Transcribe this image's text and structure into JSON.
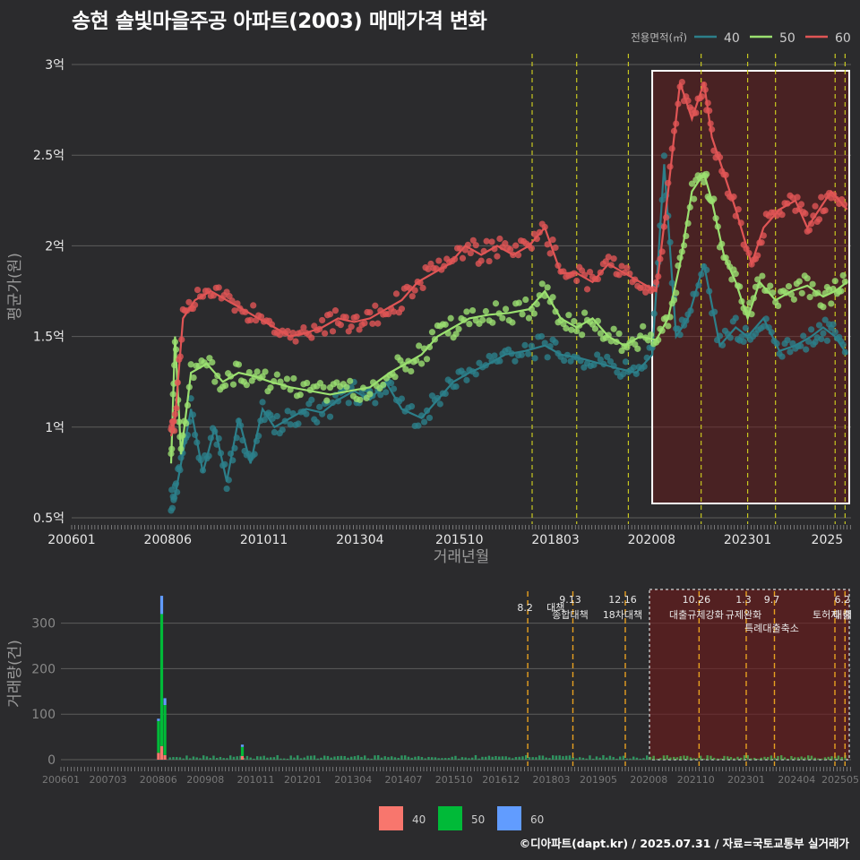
{
  "title": "송현 솔빛마을주공 아파트(2003) 매매가격 변화",
  "credit": "©디아파트(dapt.kr) / 2025.07.31 / 자료=국토교통부 실거래가",
  "legend_top": {
    "title": "전용면적(㎡)",
    "entries": [
      {
        "label": "40",
        "color": "#2c7f8a"
      },
      {
        "label": "50",
        "color": "#9be070"
      },
      {
        "label": "60",
        "color": "#e05555"
      }
    ]
  },
  "legend_bottom": {
    "entries": [
      {
        "label": "40",
        "color": "#f8766d"
      },
      {
        "label": "50",
        "color": "#00ba38"
      },
      {
        "label": "60",
        "color": "#619cff"
      }
    ]
  },
  "chart_data": [
    {
      "type": "line",
      "title": "송현 솔빛마을주공 아파트(2003) 매매가격 변화",
      "xlabel": "거래년월",
      "ylabel": "평균가(원)",
      "x_range": [
        2006.0,
        2025.6
      ],
      "ylim": [
        0.5,
        3.0
      ],
      "x_ticks": [
        "200601",
        "200806",
        "201011",
        "201304",
        "201510",
        "201803",
        "202008",
        "202301",
        "2025"
      ],
      "y_ticks": [
        {
          "value": 0.5,
          "label": "0.5억"
        },
        {
          "value": 1,
          "label": "1억"
        },
        {
          "value": 1.5,
          "label": "1.5억"
        },
        {
          "value": 2,
          "label": "2억"
        },
        {
          "value": 2.5,
          "label": "2.5억"
        },
        {
          "value": 3,
          "label": "3억"
        }
      ],
      "series": [
        {
          "name": "40",
          "color": "#2c7f8a",
          "x": [
            2008.5,
            2008.6,
            2008.75,
            2009.0,
            2009.3,
            2009.6,
            2009.9,
            2010.2,
            2010.5,
            2010.8,
            2011.1,
            2011.5,
            2011.9,
            2012.3,
            2012.7,
            2013.1,
            2013.5,
            2013.9,
            2014.3,
            2014.8,
            2015.2,
            2015.6,
            2016.0,
            2016.5,
            2016.9,
            2017.4,
            2017.9,
            2018.3,
            2018.8,
            2019.3,
            2019.8,
            2020.2,
            2020.6,
            2020.9,
            2021.2,
            2021.5,
            2021.9,
            2022.3,
            2022.7,
            2023.0,
            2023.4,
            2023.8,
            2024.2,
            2024.6,
            2024.9,
            2025.2,
            2025.5
          ],
          "y": [
            0.6,
            0.62,
            0.8,
            1.1,
            0.75,
            1.0,
            0.7,
            1.05,
            0.8,
            1.1,
            1.0,
            1.05,
            1.1,
            1.08,
            1.15,
            1.2,
            1.15,
            1.25,
            1.1,
            1.05,
            1.15,
            1.25,
            1.3,
            1.35,
            1.4,
            1.42,
            1.45,
            1.4,
            1.38,
            1.35,
            1.32,
            1.3,
            1.4,
            2.45,
            1.5,
            1.6,
            1.9,
            1.45,
            1.55,
            1.5,
            1.6,
            1.42,
            1.45,
            1.5,
            1.55,
            1.5,
            1.4
          ]
        },
        {
          "name": "50",
          "color": "#9be070",
          "x": [
            2008.5,
            2008.6,
            2008.75,
            2009.0,
            2009.4,
            2009.8,
            2010.2,
            2010.6,
            2011.0,
            2011.5,
            2012.0,
            2012.5,
            2013.0,
            2013.5,
            2014.0,
            2014.4,
            2014.8,
            2015.2,
            2015.6,
            2016.0,
            2016.5,
            2017.0,
            2017.5,
            2017.9,
            2018.3,
            2018.7,
            2019.1,
            2019.5,
            2019.9,
            2020.3,
            2020.7,
            2021.0,
            2021.3,
            2021.6,
            2021.9,
            2022.1,
            2022.4,
            2022.7,
            2023.0,
            2023.3,
            2023.7,
            2024.1,
            2024.5,
            2024.9,
            2025.2,
            2025.5
          ],
          "y": [
            0.8,
            1.5,
            0.85,
            1.3,
            1.35,
            1.25,
            1.3,
            1.28,
            1.25,
            1.22,
            1.2,
            1.18,
            1.2,
            1.22,
            1.3,
            1.35,
            1.4,
            1.5,
            1.55,
            1.6,
            1.62,
            1.63,
            1.65,
            1.75,
            1.6,
            1.55,
            1.6,
            1.5,
            1.45,
            1.5,
            1.48,
            1.6,
            1.9,
            2.3,
            2.4,
            2.25,
            1.95,
            1.8,
            1.6,
            1.8,
            1.7,
            1.75,
            1.78,
            1.72,
            1.75,
            1.8
          ]
        },
        {
          "name": "60",
          "color": "#e05555",
          "x": [
            2008.5,
            2008.6,
            2008.8,
            2009.1,
            2009.5,
            2009.9,
            2010.3,
            2010.7,
            2011.1,
            2011.5,
            2011.9,
            2012.3,
            2012.7,
            2013.1,
            2013.5,
            2013.9,
            2014.3,
            2014.7,
            2015.1,
            2015.5,
            2015.9,
            2016.3,
            2016.7,
            2017.1,
            2017.5,
            2017.9,
            2018.3,
            2018.7,
            2019.1,
            2019.5,
            2019.9,
            2020.3,
            2020.7,
            2021.0,
            2021.3,
            2021.6,
            2021.9,
            2022.1,
            2022.4,
            2022.7,
            2023.1,
            2023.4,
            2023.8,
            2024.2,
            2024.5,
            2024.8,
            2025.1,
            2025.5
          ],
          "y": [
            0.95,
            1.05,
            1.6,
            1.7,
            1.75,
            1.7,
            1.65,
            1.6,
            1.55,
            1.5,
            1.52,
            1.55,
            1.6,
            1.58,
            1.6,
            1.65,
            1.7,
            1.8,
            1.85,
            1.9,
            2.0,
            1.95,
            2.0,
            1.95,
            2.0,
            2.1,
            1.85,
            1.85,
            1.8,
            1.9,
            1.85,
            1.8,
            1.75,
            2.3,
            2.9,
            2.7,
            2.9,
            2.6,
            2.4,
            2.2,
            1.9,
            2.1,
            2.2,
            2.25,
            2.1,
            2.2,
            2.3,
            2.2
          ]
        }
      ],
      "policy_lines": [
        2017.58,
        2018.7,
        2020.0,
        2021.83,
        2023.0,
        2023.7,
        2025.2,
        2025.45
      ],
      "highlight_range": [
        2020.6,
        2025.6
      ]
    },
    {
      "type": "bar",
      "xlabel": "",
      "ylabel": "거래량(건)",
      "ylim": [
        0,
        370
      ],
      "x_range": [
        2006.0,
        2025.6
      ],
      "y_ticks": [
        0,
        100,
        200,
        300
      ],
      "x_ticks": [
        "200601",
        "200703",
        "200806",
        "200908",
        "201011",
        "201201",
        "201304",
        "201407",
        "201510",
        "201612",
        "201803",
        "201905",
        "202008",
        "202110",
        "202301",
        "202404",
        "202505"
      ],
      "series": [
        {
          "name": "40",
          "color": "#f8766d",
          "x": [
            2008.42,
            2008.5,
            2008.58,
            2010.5
          ],
          "values": [
            15,
            30,
            10,
            8
          ]
        },
        {
          "name": "50",
          "color": "#00ba38",
          "x": [
            2008.42,
            2008.5,
            2008.58,
            2010.5
          ],
          "values": [
            70,
            290,
            110,
            20
          ]
        },
        {
          "name": "60",
          "color": "#619cff",
          "x": [
            2008.42,
            2008.5,
            2008.58,
            2010.5
          ],
          "values": [
            5,
            40,
            15,
            5
          ]
        }
      ],
      "policy_events": [
        {
          "date": "8.2",
          "label": "대책",
          "x": 2017.58
        },
        {
          "date": "9.13",
          "label": "종합대책",
          "x": 2018.7
        },
        {
          "date": "12.16",
          "label": "18차대책",
          "x": 2020.0
        },
        {
          "date": "10.26",
          "label": "대출규제강화",
          "x": 2021.83
        },
        {
          "date": "1.3",
          "label": "규제완화",
          "x": 2023.0
        },
        {
          "date": "9.7",
          "label": "특례대출축소",
          "x": 2023.7
        },
        {
          "date": "",
          "label": "토허제 해",
          "x": 2025.2
        },
        {
          "date": "6.2",
          "label": "대출",
          "x": 2025.45
        }
      ],
      "highlight_range": [
        2020.6,
        2025.6
      ]
    }
  ]
}
